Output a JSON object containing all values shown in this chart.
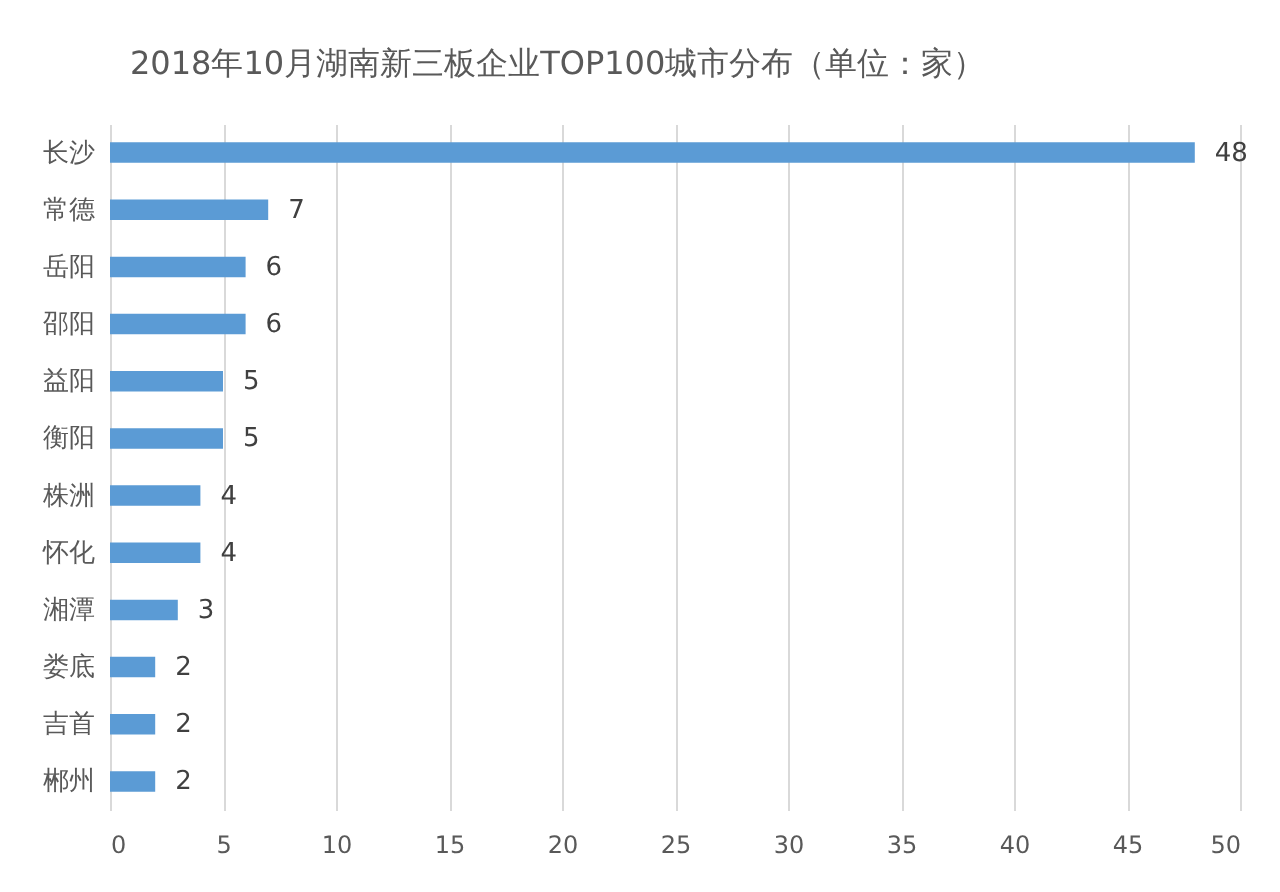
{
  "chart_data": {
    "type": "bar",
    "orientation": "horizontal",
    "title": "2018年10月湖南新三板企业TOP100城市分布（单位：家）",
    "categories": [
      "长沙",
      "常德",
      "岳阳",
      "邵阳",
      "益阳",
      "衡阳",
      "株洲",
      "怀化",
      "湘潭",
      "娄底",
      "吉首",
      "郴州"
    ],
    "values": [
      48,
      7,
      6,
      6,
      5,
      5,
      4,
      4,
      3,
      2,
      2,
      2
    ],
    "color": "#5b9bd5",
    "xlim": [
      0,
      50
    ],
    "xticks": [
      0,
      5,
      10,
      15,
      20,
      25,
      30,
      35,
      40,
      45,
      50
    ],
    "grid": "x",
    "data_labels": true
  }
}
